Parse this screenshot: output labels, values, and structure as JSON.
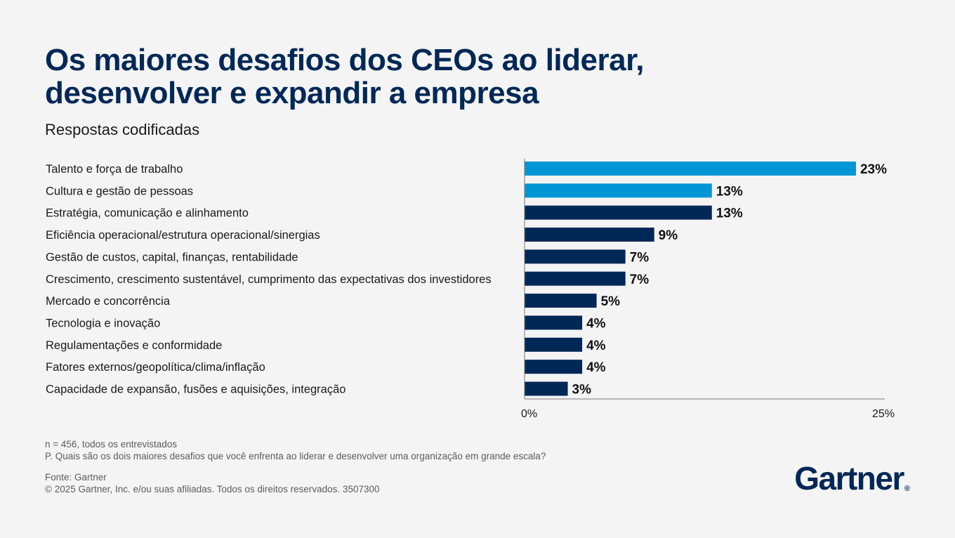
{
  "header": {
    "title_line1": "Os maiores desafios dos CEOs ao liderar,",
    "title_line2": "desenvolver e expandir a empresa",
    "subtitle": "Respostas codificadas"
  },
  "chart_data": {
    "type": "bar",
    "orientation": "horizontal",
    "categories": [
      "Talento e força de trabalho",
      "Cultura e gestão de pessoas",
      "Estratégia, comunicação e alinhamento",
      "Eficiência operacional/estrutura operacional/sinergias",
      "Gestão de custos, capital, finanças, rentabilidade",
      "Crescimento, crescimento sustentável, cumprimento das expectativas dos investidores",
      "Mercado e concorrência",
      "Tecnologia e inovação",
      "Regulamentações e conformidade",
      "Fatores externos/geopolítica/clima/inflação",
      "Capacidade de expansão, fusões e aquisições, integração"
    ],
    "values": [
      23,
      13,
      13,
      9,
      7,
      7,
      5,
      4,
      4,
      4,
      3
    ],
    "value_labels": [
      "23%",
      "13%",
      "13%",
      "9%",
      "7%",
      "7%",
      "5%",
      "4%",
      "4%",
      "4%",
      "3%"
    ],
    "bar_colors": [
      "#0096d6",
      "#0096d6",
      "#002856",
      "#002856",
      "#002856",
      "#002856",
      "#002856",
      "#002856",
      "#002856",
      "#002856",
      "#002856"
    ],
    "xlim": [
      0,
      25
    ],
    "xticks": [
      "0%",
      "25%"
    ],
    "grid": false
  },
  "footer": {
    "sample": "n = 456, todos os entrevistados",
    "question": "P. Quais são os dois maiores desafios que você enfrenta ao liderar e desenvolver uma organização em grande escala?",
    "source": "Fonte: Gartner",
    "copyright": "© 2025 Gartner, Inc. e/ou suas afiliadas. Todos os direitos reservados. 3507300"
  },
  "logo": {
    "text": "Gartner",
    "mark": "®"
  }
}
